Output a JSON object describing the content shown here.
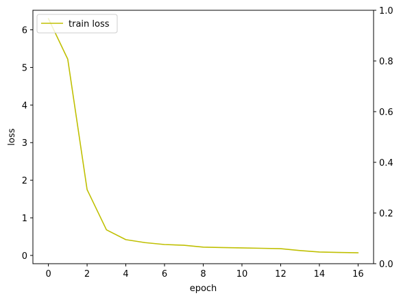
{
  "chart_data": {
    "type": "line",
    "title": "",
    "xlabel": "epoch",
    "ylabel": "loss",
    "xlim": [
      -0.8,
      16.8
    ],
    "ylim": [
      -0.22,
      6.52
    ],
    "xticks": [
      0,
      2,
      4,
      6,
      8,
      10,
      12,
      14,
      16
    ],
    "xtick_labels": [
      "0",
      "2",
      "4",
      "6",
      "8",
      "10",
      "12",
      "14",
      "16"
    ],
    "yticks": [
      0,
      1,
      2,
      3,
      4,
      5,
      6
    ],
    "ytick_labels": [
      "0",
      "1",
      "2",
      "3",
      "4",
      "5",
      "6"
    ],
    "y2lim": [
      0.0,
      1.0
    ],
    "y2ticks": [
      0.0,
      0.2,
      0.4,
      0.6,
      0.8,
      1.0
    ],
    "y2tick_labels": [
      "0.0",
      "0.2",
      "0.4",
      "0.6",
      "0.8",
      "1.0"
    ],
    "grid": false,
    "legend_position": "top-left",
    "series": [
      {
        "name": "train loss",
        "color": "#bfbf00",
        "x": [
          0,
          1,
          2,
          3,
          4,
          5,
          6,
          7,
          8,
          9,
          10,
          11,
          12,
          13,
          14,
          15,
          16
        ],
        "y": [
          6.3,
          5.22,
          1.75,
          0.68,
          0.42,
          0.34,
          0.29,
          0.27,
          0.22,
          0.21,
          0.2,
          0.19,
          0.18,
          0.13,
          0.09,
          0.08,
          0.07
        ]
      }
    ]
  }
}
